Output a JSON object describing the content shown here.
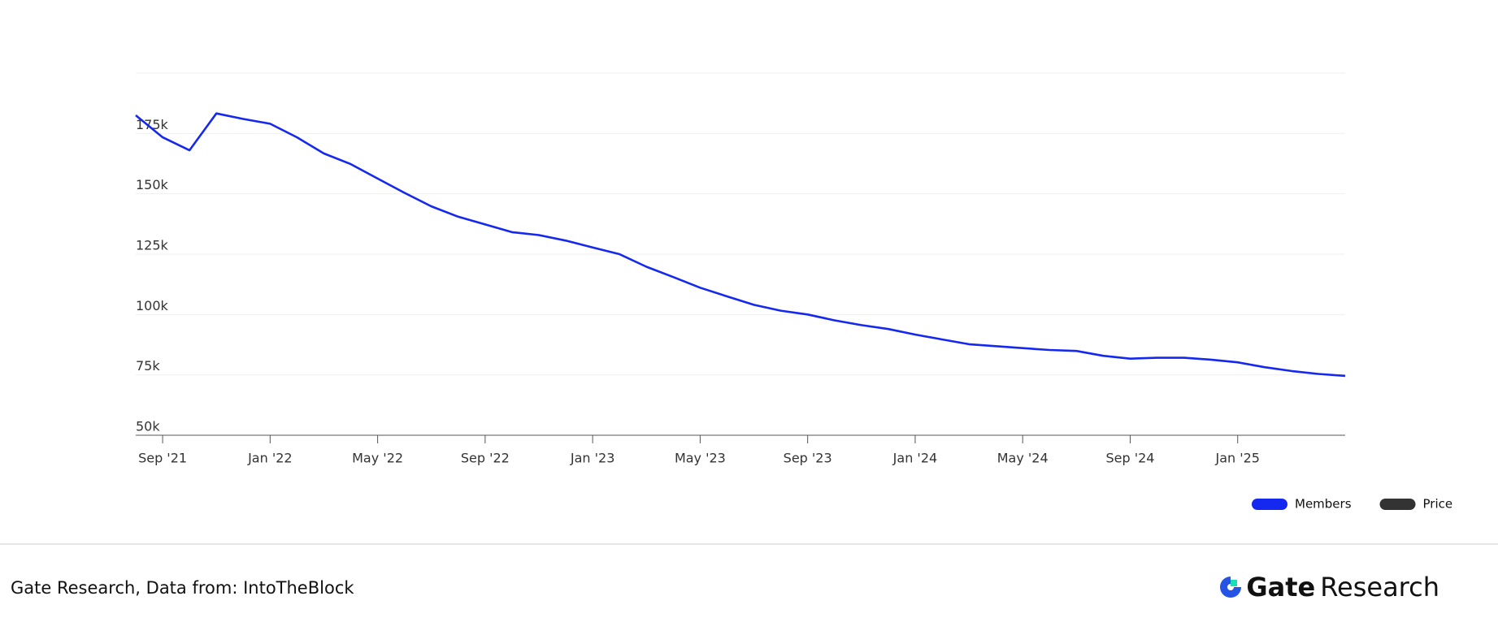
{
  "chart_data": {
    "type": "line",
    "x": [
      "2021-08",
      "2021-09",
      "2021-10",
      "2021-11",
      "2021-12",
      "2022-01",
      "2022-02",
      "2022-03",
      "2022-04",
      "2022-05",
      "2022-06",
      "2022-07",
      "2022-08",
      "2022-09",
      "2022-10",
      "2022-11",
      "2022-12",
      "2023-01",
      "2023-02",
      "2023-03",
      "2023-04",
      "2023-05",
      "2023-06",
      "2023-07",
      "2023-08",
      "2023-09",
      "2023-10",
      "2023-11",
      "2023-12",
      "2024-01",
      "2024-02",
      "2024-03",
      "2024-04",
      "2024-05",
      "2024-06",
      "2024-07",
      "2024-08",
      "2024-09",
      "2024-10",
      "2024-11",
      "2024-12",
      "2025-01",
      "2025-02",
      "2025-03",
      "2025-04",
      "2025-05"
    ],
    "series": [
      {
        "name": "Members",
        "color": "#1428f0",
        "values": [
          182500,
          173400,
          168000,
          183300,
          181000,
          179000,
          173400,
          166700,
          162300,
          156300,
          150400,
          144800,
          140500,
          137300,
          134100,
          132900,
          130600,
          127800,
          125000,
          119800,
          115500,
          111100,
          107500,
          104000,
          101600,
          100000,
          97600,
          95600,
          94000,
          91700,
          89700,
          87700,
          86900,
          86100,
          85300,
          84900,
          82900,
          81700,
          82100,
          82100,
          81300,
          80200,
          78200,
          76600,
          75400,
          74600
        ]
      },
      {
        "name": "Price",
        "color": "#333333",
        "values": [
          null,
          null,
          null,
          null,
          null,
          null,
          null,
          null,
          null,
          null,
          null,
          null,
          null,
          null,
          null,
          null,
          null,
          null,
          null,
          null,
          null,
          null,
          null,
          null,
          null,
          null,
          null,
          null,
          null,
          null,
          null,
          null,
          null,
          null,
          null,
          null,
          null,
          null,
          null,
          null,
          null,
          null,
          null,
          null,
          null,
          null
        ]
      }
    ],
    "xlim": [
      "2021-08",
      "2025-05"
    ],
    "xticks": [
      {
        "value": "2021-09",
        "label": "Sep '21"
      },
      {
        "value": "2022-01",
        "label": "Jan '22"
      },
      {
        "value": "2022-05",
        "label": "May '22"
      },
      {
        "value": "2022-09",
        "label": "Sep '22"
      },
      {
        "value": "2023-01",
        "label": "Jan '23"
      },
      {
        "value": "2023-05",
        "label": "May '23"
      },
      {
        "value": "2023-09",
        "label": "Sep '23"
      },
      {
        "value": "2024-01",
        "label": "Jan '24"
      },
      {
        "value": "2024-05",
        "label": "May '24"
      },
      {
        "value": "2024-09",
        "label": "Sep '24"
      },
      {
        "value": "2025-01",
        "label": "Jan '25"
      }
    ],
    "ylim": [
      50000,
      200000
    ],
    "yticks": [
      {
        "value": 50000,
        "label": "50k"
      },
      {
        "value": 75000,
        "label": "75k"
      },
      {
        "value": 100000,
        "label": "100k"
      },
      {
        "value": 125000,
        "label": "125k"
      },
      {
        "value": 150000,
        "label": "150k"
      },
      {
        "value": 175000,
        "label": "175k"
      }
    ],
    "grid": true,
    "legend": "bottom-right"
  },
  "footer": {
    "source": "Gate Research, Data from: IntoTheBlock",
    "logo_bold": "Gate",
    "logo_light": "Research"
  }
}
